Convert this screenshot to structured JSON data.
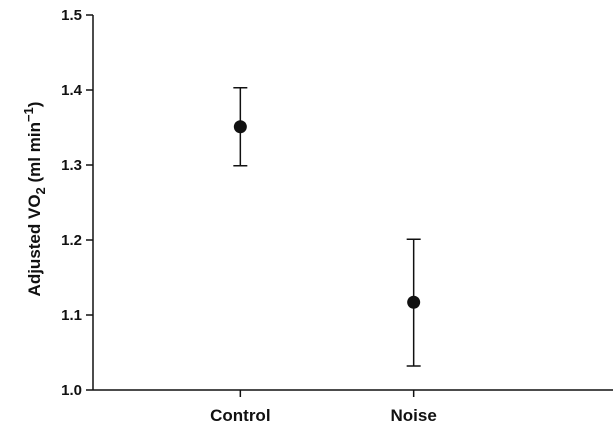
{
  "chart_data": {
    "type": "scatter",
    "title": "",
    "xlabel": "",
    "ylabel": {
      "prefix": "Adjusted VO",
      "subscript": "2",
      "unit_prefix": " (ml min",
      "superscript": "−1",
      "unit_suffix": ")"
    },
    "categories": [
      "Control",
      "Noise"
    ],
    "ylim": [
      1.0,
      1.5
    ],
    "yticks": [
      "1.0",
      "1.1",
      "1.2",
      "1.3",
      "1.4",
      "1.5"
    ],
    "series": [
      {
        "values": [
          1.351,
          1.117
        ],
        "error_lower": [
          1.299,
          1.032
        ],
        "error_upper": [
          1.403,
          1.201
        ]
      }
    ],
    "grid": false,
    "colors": {
      "marker": "#111111",
      "axis": "#111111"
    }
  }
}
